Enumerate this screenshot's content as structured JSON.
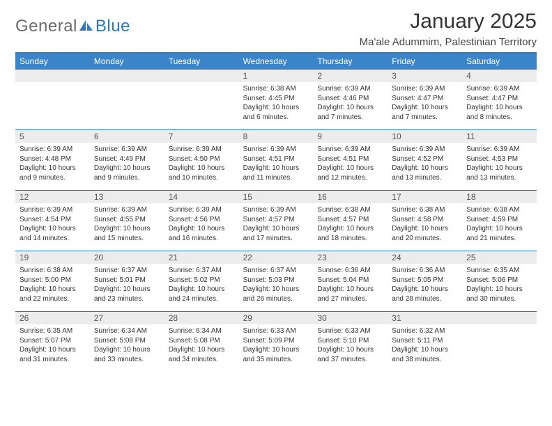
{
  "logo": {
    "part1": "General",
    "part2": "Blue"
  },
  "title": "January 2025",
  "subtitle": "Ma'ale Adummim, Palestinian Territory",
  "colors": {
    "header_bg": "#3a85c9",
    "header_border": "#2f78bd",
    "daynum_bg": "#ececec",
    "logo_gray": "#6b6b6b",
    "logo_blue": "#2f78bd"
  },
  "weekdays": [
    "Sunday",
    "Monday",
    "Tuesday",
    "Wednesday",
    "Thursday",
    "Friday",
    "Saturday"
  ],
  "weeks": [
    [
      {
        "n": null
      },
      {
        "n": null
      },
      {
        "n": null
      },
      {
        "n": 1,
        "sunrise": "6:38 AM",
        "sunset": "4:45 PM",
        "daylight": "10 hours and 6 minutes."
      },
      {
        "n": 2,
        "sunrise": "6:39 AM",
        "sunset": "4:46 PM",
        "daylight": "10 hours and 7 minutes."
      },
      {
        "n": 3,
        "sunrise": "6:39 AM",
        "sunset": "4:47 PM",
        "daylight": "10 hours and 7 minutes."
      },
      {
        "n": 4,
        "sunrise": "6:39 AM",
        "sunset": "4:47 PM",
        "daylight": "10 hours and 8 minutes."
      }
    ],
    [
      {
        "n": 5,
        "sunrise": "6:39 AM",
        "sunset": "4:48 PM",
        "daylight": "10 hours and 9 minutes."
      },
      {
        "n": 6,
        "sunrise": "6:39 AM",
        "sunset": "4:49 PM",
        "daylight": "10 hours and 9 minutes."
      },
      {
        "n": 7,
        "sunrise": "6:39 AM",
        "sunset": "4:50 PM",
        "daylight": "10 hours and 10 minutes."
      },
      {
        "n": 8,
        "sunrise": "6:39 AM",
        "sunset": "4:51 PM",
        "daylight": "10 hours and 11 minutes."
      },
      {
        "n": 9,
        "sunrise": "6:39 AM",
        "sunset": "4:51 PM",
        "daylight": "10 hours and 12 minutes."
      },
      {
        "n": 10,
        "sunrise": "6:39 AM",
        "sunset": "4:52 PM",
        "daylight": "10 hours and 13 minutes."
      },
      {
        "n": 11,
        "sunrise": "6:39 AM",
        "sunset": "4:53 PM",
        "daylight": "10 hours and 13 minutes."
      }
    ],
    [
      {
        "n": 12,
        "sunrise": "6:39 AM",
        "sunset": "4:54 PM",
        "daylight": "10 hours and 14 minutes."
      },
      {
        "n": 13,
        "sunrise": "6:39 AM",
        "sunset": "4:55 PM",
        "daylight": "10 hours and 15 minutes."
      },
      {
        "n": 14,
        "sunrise": "6:39 AM",
        "sunset": "4:56 PM",
        "daylight": "10 hours and 16 minutes."
      },
      {
        "n": 15,
        "sunrise": "6:39 AM",
        "sunset": "4:57 PM",
        "daylight": "10 hours and 17 minutes."
      },
      {
        "n": 16,
        "sunrise": "6:38 AM",
        "sunset": "4:57 PM",
        "daylight": "10 hours and 18 minutes."
      },
      {
        "n": 17,
        "sunrise": "6:38 AM",
        "sunset": "4:58 PM",
        "daylight": "10 hours and 20 minutes."
      },
      {
        "n": 18,
        "sunrise": "6:38 AM",
        "sunset": "4:59 PM",
        "daylight": "10 hours and 21 minutes."
      }
    ],
    [
      {
        "n": 19,
        "sunrise": "6:38 AM",
        "sunset": "5:00 PM",
        "daylight": "10 hours and 22 minutes."
      },
      {
        "n": 20,
        "sunrise": "6:37 AM",
        "sunset": "5:01 PM",
        "daylight": "10 hours and 23 minutes."
      },
      {
        "n": 21,
        "sunrise": "6:37 AM",
        "sunset": "5:02 PM",
        "daylight": "10 hours and 24 minutes."
      },
      {
        "n": 22,
        "sunrise": "6:37 AM",
        "sunset": "5:03 PM",
        "daylight": "10 hours and 26 minutes."
      },
      {
        "n": 23,
        "sunrise": "6:36 AM",
        "sunset": "5:04 PM",
        "daylight": "10 hours and 27 minutes."
      },
      {
        "n": 24,
        "sunrise": "6:36 AM",
        "sunset": "5:05 PM",
        "daylight": "10 hours and 28 minutes."
      },
      {
        "n": 25,
        "sunrise": "6:35 AM",
        "sunset": "5:06 PM",
        "daylight": "10 hours and 30 minutes."
      }
    ],
    [
      {
        "n": 26,
        "sunrise": "6:35 AM",
        "sunset": "5:07 PM",
        "daylight": "10 hours and 31 minutes."
      },
      {
        "n": 27,
        "sunrise": "6:34 AM",
        "sunset": "5:08 PM",
        "daylight": "10 hours and 33 minutes."
      },
      {
        "n": 28,
        "sunrise": "6:34 AM",
        "sunset": "5:08 PM",
        "daylight": "10 hours and 34 minutes."
      },
      {
        "n": 29,
        "sunrise": "6:33 AM",
        "sunset": "5:09 PM",
        "daylight": "10 hours and 35 minutes."
      },
      {
        "n": 30,
        "sunrise": "6:33 AM",
        "sunset": "5:10 PM",
        "daylight": "10 hours and 37 minutes."
      },
      {
        "n": 31,
        "sunrise": "6:32 AM",
        "sunset": "5:11 PM",
        "daylight": "10 hours and 38 minutes."
      },
      {
        "n": null
      }
    ]
  ],
  "labels": {
    "sunrise": "Sunrise:",
    "sunset": "Sunset:",
    "daylight": "Daylight:"
  }
}
